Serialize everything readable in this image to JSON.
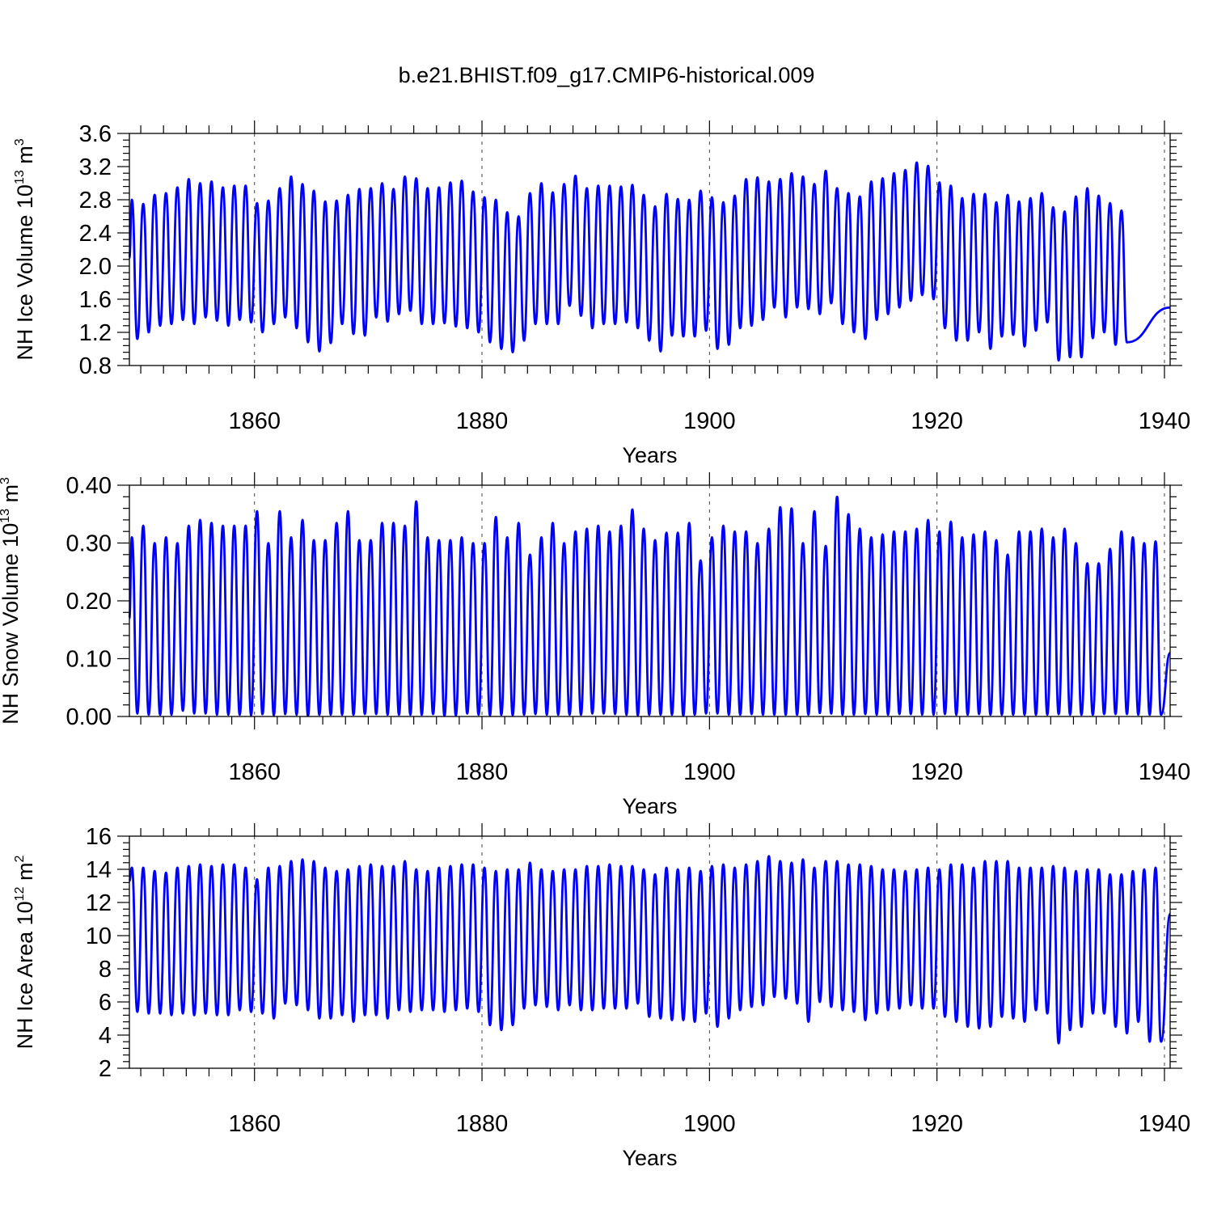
{
  "figure": {
    "title": "b.e21.BHIST.f09_g17.CMIP6-historical.009"
  },
  "colors": {
    "series": "#0000ff",
    "axis": "#000000",
    "grid": "#444444"
  },
  "chart_data": [
    {
      "type": "line",
      "name": "nh-ice-volume",
      "ylabel_text": "NH Ice Volume 10",
      "ylabel_exp": "13",
      "ylabel_unit": " m",
      "ylabel_unit_exp": "3",
      "xlabel": "Years",
      "xlim": [
        1849,
        1940.5
      ],
      "ylim": [
        0.8,
        3.6
      ],
      "xticks": [
        1860,
        1880,
        1900,
        1920,
        1940
      ],
      "xtick_labels": [
        "1860",
        "1880",
        "1900",
        "1920",
        "1940"
      ],
      "yticks": [
        0.8,
        1.2,
        1.6,
        2.0,
        2.4,
        2.8,
        3.2,
        3.6
      ],
      "ytick_labels": [
        "0.8",
        "1.2",
        "1.6",
        "2.0",
        "2.4",
        "2.8",
        "3.2",
        "3.6"
      ],
      "y_minor_step": 0.08,
      "grid_x": true,
      "start": 2.1,
      "end": 1.5,
      "maxima": [
        2.8,
        2.75,
        2.86,
        2.88,
        2.95,
        3.05,
        3.0,
        3.02,
        2.95,
        2.97,
        2.97,
        2.76,
        2.79,
        2.94,
        3.08,
        2.99,
        2.91,
        2.78,
        2.79,
        2.86,
        2.93,
        2.94,
        3.0,
        2.93,
        3.08,
        3.06,
        2.94,
        2.95,
        3.01,
        3.03,
        2.9,
        2.83,
        2.8,
        2.65,
        2.6,
        2.88,
        3.0,
        2.89,
        2.99,
        3.09,
        2.94,
        2.97,
        2.97,
        2.96,
        2.98,
        2.86,
        2.72,
        2.87,
        2.81,
        2.8,
        2.91,
        2.83,
        2.77,
        2.85,
        3.05,
        3.07,
        3.02,
        3.05,
        3.12,
        3.08,
        2.99,
        3.15,
        2.94,
        2.88,
        2.84,
        3.02,
        3.06,
        3.12,
        3.16,
        3.25,
        3.21,
        3.01,
        2.97,
        2.82,
        2.87,
        2.87,
        2.77,
        2.86,
        2.78,
        2.82,
        2.88,
        2.71,
        2.66,
        2.84,
        2.94,
        2.85,
        2.76,
        2.67
      ],
      "minima": [
        1.12,
        1.2,
        1.28,
        1.3,
        1.35,
        1.3,
        1.38,
        1.34,
        1.28,
        1.35,
        1.32,
        1.2,
        1.3,
        1.38,
        1.25,
        1.08,
        0.97,
        1.07,
        1.3,
        1.18,
        1.16,
        1.38,
        1.33,
        1.42,
        1.46,
        1.3,
        1.3,
        1.31,
        1.27,
        1.25,
        1.2,
        1.08,
        1.0,
        0.96,
        1.1,
        1.3,
        1.3,
        1.3,
        1.52,
        1.4,
        1.25,
        1.3,
        1.3,
        1.32,
        1.25,
        1.1,
        0.97,
        1.16,
        1.15,
        1.15,
        1.22,
        1.0,
        1.05,
        1.25,
        1.28,
        1.35,
        1.5,
        1.38,
        1.5,
        1.48,
        1.42,
        1.55,
        1.3,
        1.2,
        1.12,
        1.35,
        1.42,
        1.5,
        1.58,
        1.65,
        1.6,
        1.25,
        1.1,
        1.1,
        1.2,
        1.0,
        1.15,
        1.17,
        1.03,
        1.22,
        1.32,
        0.86,
        0.9,
        0.9,
        1.13,
        1.2,
        1.05,
        1.08
      ],
      "final_min": 0.96
    },
    {
      "type": "line",
      "name": "nh-snow-volume",
      "ylabel_text": "NH Snow Volume 10",
      "ylabel_exp": "13",
      "ylabel_unit": " m",
      "ylabel_unit_exp": "3",
      "xlabel": "Years",
      "xlim": [
        1849,
        1940.5
      ],
      "ylim": [
        0.0,
        0.4
      ],
      "xticks": [
        1860,
        1880,
        1900,
        1920,
        1940
      ],
      "xtick_labels": [
        "1860",
        "1880",
        "1900",
        "1920",
        "1940"
      ],
      "yticks": [
        0.0,
        0.1,
        0.2,
        0.3,
        0.4
      ],
      "ytick_labels": [
        "0.00",
        "0.10",
        "0.20",
        "0.30",
        "0.40"
      ],
      "y_minor_step": 0.02,
      "grid_x": true,
      "start": 0.17,
      "end": 0.11,
      "maxima": [
        0.31,
        0.33,
        0.3,
        0.31,
        0.3,
        0.33,
        0.34,
        0.335,
        0.33,
        0.33,
        0.33,
        0.355,
        0.3,
        0.355,
        0.31,
        0.34,
        0.305,
        0.305,
        0.335,
        0.355,
        0.305,
        0.305,
        0.335,
        0.335,
        0.33,
        0.372,
        0.31,
        0.305,
        0.305,
        0.31,
        0.3,
        0.3,
        0.345,
        0.31,
        0.335,
        0.28,
        0.31,
        0.335,
        0.3,
        0.32,
        0.325,
        0.33,
        0.32,
        0.33,
        0.358,
        0.325,
        0.305,
        0.318,
        0.318,
        0.335,
        0.27,
        0.31,
        0.33,
        0.32,
        0.32,
        0.3,
        0.325,
        0.362,
        0.36,
        0.3,
        0.355,
        0.295,
        0.38,
        0.35,
        0.325,
        0.31,
        0.315,
        0.32,
        0.32,
        0.325,
        0.34,
        0.32,
        0.337,
        0.31,
        0.315,
        0.32,
        0.305,
        0.28,
        0.32,
        0.32,
        0.325,
        0.31,
        0.325,
        0.3,
        0.265,
        0.265,
        0.29,
        0.32,
        0.31,
        0.3,
        0.303
      ],
      "minima": [
        0.005,
        0.003,
        0.003,
        0.003,
        0.01,
        0.005,
        0.005,
        0.003,
        0.003,
        0.003,
        0.002,
        0.004,
        0.002,
        0.004,
        0.003,
        0.001,
        0.003,
        0.003,
        0.003,
        0.003,
        0.004,
        0.004,
        0.003,
        0.003,
        0.003,
        0.003,
        0.004,
        0.001,
        0.002,
        0.005,
        0.003,
        0.002,
        0.003,
        0.002,
        0.003,
        0.004,
        0.003,
        0.003,
        0.003,
        0.003,
        0.005,
        0.005,
        0.004,
        0.003,
        0.002,
        0.003,
        0.003,
        0.003,
        0.001,
        0.003,
        0.005,
        0.005,
        0.003,
        0.003,
        0.004,
        0.003,
        0.003,
        0.003,
        0.003,
        0.003,
        0.006,
        0.005,
        0.003,
        0.003,
        0.004,
        0.003,
        0.003,
        0.004,
        0.004,
        0.003,
        0.003,
        0.004,
        0.003,
        0.003,
        0.004,
        0.003,
        0.003,
        0.003,
        0.003,
        0.003,
        0.003,
        0.004,
        0.003,
        0.003,
        0.003,
        0.004,
        0.004,
        0.004,
        0.003,
        0.003
      ],
      "final_min": 0.003
    },
    {
      "type": "line",
      "name": "nh-ice-area",
      "ylabel_text": "NH Ice Area 10",
      "ylabel_exp": "12",
      "ylabel_unit": " m",
      "ylabel_unit_exp": "2",
      "xlabel": "Years",
      "xlim": [
        1849,
        1940.5
      ],
      "ylim": [
        2,
        16
      ],
      "xticks": [
        1860,
        1880,
        1900,
        1920,
        1940
      ],
      "xtick_labels": [
        "1860",
        "1880",
        "1900",
        "1920",
        "1940"
      ],
      "yticks": [
        2,
        4,
        6,
        8,
        10,
        12,
        14,
        16
      ],
      "ytick_labels": [
        "2",
        "4",
        "6",
        "8",
        "10",
        "12",
        "14",
        "16"
      ],
      "y_minor_step": 0.4,
      "grid_x": true,
      "start": 13.3,
      "end": 11.3,
      "maxima": [
        14.1,
        14.1,
        13.9,
        13.8,
        14.1,
        14.2,
        14.3,
        14.2,
        14.3,
        14.3,
        14.1,
        13.4,
        14.1,
        14.2,
        14.5,
        14.6,
        14.5,
        14.1,
        13.9,
        14.0,
        14.2,
        14.3,
        14.2,
        14.2,
        14.5,
        14.0,
        13.9,
        14.1,
        14.2,
        14.3,
        14.3,
        14.1,
        13.9,
        14.0,
        14.0,
        14.4,
        14.0,
        13.9,
        14.0,
        14.0,
        14.2,
        14.2,
        14.3,
        14.2,
        14.2,
        14.0,
        13.7,
        14.1,
        14.0,
        14.1,
        13.9,
        14.2,
        14.3,
        14.1,
        14.3,
        14.5,
        14.8,
        14.5,
        14.4,
        14.6,
        14.1,
        14.5,
        14.5,
        14.3,
        14.3,
        14.2,
        14.0,
        14.0,
        13.9,
        14.0,
        14.1,
        14.0,
        14.3,
        14.3,
        14.1,
        14.5,
        14.5,
        14.5,
        14.1,
        14.1,
        14.1,
        14.2,
        14.1,
        13.9,
        14.0,
        14.0,
        13.7,
        13.7,
        13.9,
        14.0,
        14.1
      ],
      "minima": [
        5.4,
        5.3,
        5.3,
        5.2,
        5.3,
        5.2,
        5.3,
        5.2,
        5.2,
        5.5,
        5.4,
        5.3,
        5.0,
        5.9,
        5.8,
        5.5,
        5.0,
        5.0,
        5.2,
        4.8,
        5.2,
        5.2,
        5.0,
        5.5,
        5.4,
        5.5,
        5.5,
        5.4,
        5.5,
        5.6,
        5.4,
        4.6,
        4.3,
        4.6,
        5.6,
        5.8,
        5.7,
        5.5,
        5.8,
        5.5,
        5.5,
        5.6,
        5.6,
        5.6,
        5.9,
        5.1,
        5.0,
        4.9,
        4.9,
        4.8,
        5.3,
        4.5,
        5.0,
        5.5,
        5.7,
        5.8,
        6.3,
        6.2,
        5.9,
        4.8,
        6.0,
        5.7,
        5.5,
        5.4,
        4.9,
        5.3,
        5.5,
        5.6,
        5.8,
        5.6,
        5.6,
        5.1,
        4.8,
        4.5,
        4.4,
        4.5,
        5.1,
        5.0,
        4.8,
        5.5,
        5.3,
        3.5,
        4.3,
        4.5,
        5.3,
        5.3,
        4.5,
        4.1,
        4.8
      ],
      "final_min": 3.6
    }
  ]
}
